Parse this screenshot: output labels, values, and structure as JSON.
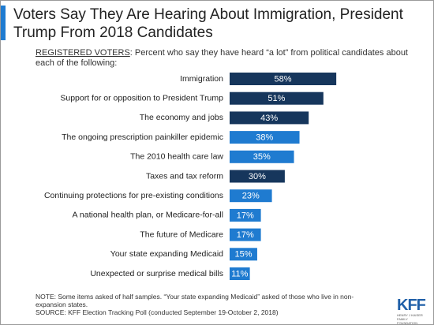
{
  "chart_data": {
    "type": "bar",
    "orientation": "horizontal",
    "title": "Voters Say They Are Hearing About Immigration, President Trump From 2018 Candidates",
    "subtitle_prefix": "REGISTERED VOTERS",
    "subtitle": ": Percent who say they have heard “a lot” from political candidates about each of the following:",
    "categories": [
      "Immigration",
      "Support for or opposition to President Trump",
      "The economy and jobs",
      "The ongoing prescription painkiller epidemic",
      "The 2010 health care law",
      "Taxes and tax reform",
      "Continuing protections for pre-existing conditions",
      "A national health plan, or Medicare-for-all",
      "The future of Medicare",
      "Your state expanding Medicaid",
      "Unexpected or surprise medical bills"
    ],
    "values": [
      58,
      51,
      43,
      38,
      35,
      30,
      23,
      17,
      17,
      15,
      11
    ],
    "value_labels": [
      "58%",
      "51%",
      "43%",
      "38%",
      "35%",
      "30%",
      "23%",
      "17%",
      "17%",
      "15%",
      "11%"
    ],
    "colors": [
      "#16365c",
      "#16365c",
      "#16365c",
      "#1f7bd0",
      "#1f7bd0",
      "#16365c",
      "#1f7bd0",
      "#1f7bd0",
      "#1f7bd0",
      "#1f7bd0",
      "#1f7bd0"
    ],
    "note": "NOTE: Some items asked of half samples. “Your state expanding Medicaid” asked of those who live in non-expansion states.",
    "source": "SOURCE: KFF Election Tracking Poll (conducted September 19-October 2, 2018)",
    "logo": "KFF",
    "logo_subtext": "HENRY J KAISER FAMILY FOUNDATION"
  }
}
